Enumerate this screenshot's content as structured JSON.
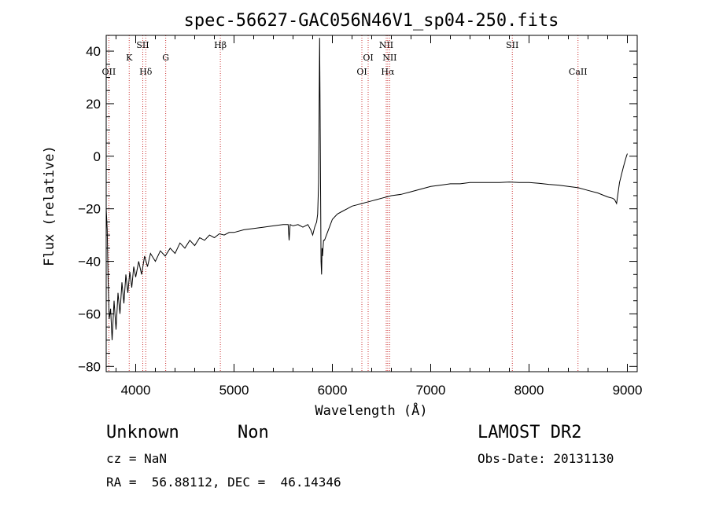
{
  "chart_data": {
    "type": "line",
    "title": "spec-56627-GAC056N46V1_sp04-250.fits",
    "xlabel": "Wavelength (Å)",
    "ylabel": "Flux (relative)",
    "xlim": [
      3700,
      9100
    ],
    "ylim": [
      -82,
      46
    ],
    "x_ticks": [
      4000,
      5000,
      6000,
      7000,
      8000,
      9000
    ],
    "y_ticks": [
      -80,
      -60,
      -40,
      -20,
      0,
      20,
      40
    ],
    "grid": false,
    "line_color": "#000000",
    "marker_color": "#cc3333",
    "emission_lines": [
      {
        "label": "OII",
        "wavelength": 3727,
        "level": 3
      },
      {
        "label": "K",
        "wavelength": 3934,
        "level": 2
      },
      {
        "label": "SII",
        "wavelength": 4072,
        "level": 1
      },
      {
        "label": "Hδ",
        "wavelength": 4102,
        "level": 3
      },
      {
        "label": "G",
        "wavelength": 4305,
        "level": 2
      },
      {
        "label": "Hβ",
        "wavelength": 4861,
        "level": 1
      },
      {
        "label": "OI",
        "wavelength": 6300,
        "level": 3
      },
      {
        "label": "OI",
        "wavelength": 6364,
        "level": 2
      },
      {
        "label": "NII",
        "wavelength": 6548,
        "level": 1
      },
      {
        "label": "Hα",
        "wavelength": 6563,
        "level": 3
      },
      {
        "label": "NII",
        "wavelength": 6583,
        "level": 2
      },
      {
        "label": "SII",
        "wavelength": 7830,
        "level": 1
      },
      {
        "label": "CaII",
        "wavelength": 8498,
        "level": 3
      }
    ],
    "series": [
      {
        "x": [
          3700,
          3710,
          3720,
          3730,
          3745,
          3760,
          3780,
          3800,
          3820,
          3840,
          3860,
          3880,
          3900,
          3920,
          3940,
          3960,
          3980,
          4000,
          4030,
          4060,
          4090,
          4120,
          4150,
          4200,
          4250,
          4300,
          4350,
          4400,
          4450,
          4500,
          4550,
          4600,
          4650,
          4700,
          4750,
          4800,
          4850,
          4900,
          4950,
          5000,
          5100,
          5200,
          5300,
          5400,
          5500,
          5550,
          5560,
          5570,
          5600,
          5650,
          5700,
          5750,
          5780,
          5800,
          5820,
          5840,
          5850,
          5860,
          5870,
          5875,
          5880,
          5885,
          5890,
          5895,
          5900,
          5910,
          5920,
          5940,
          5960,
          6000,
          6050,
          6100,
          6150,
          6200,
          6250,
          6300,
          6350,
          6400,
          6450,
          6500,
          6550,
          6600,
          6700,
          6800,
          6900,
          7000,
          7100,
          7200,
          7300,
          7400,
          7500,
          7600,
          7700,
          7800,
          7900,
          8000,
          8100,
          8200,
          8300,
          8400,
          8500,
          8600,
          8700,
          8800,
          8850,
          8870,
          8890,
          8920,
          8960,
          8990,
          9000
        ],
        "y": [
          -20,
          -28,
          -48,
          -62,
          -58,
          -70,
          -55,
          -66,
          -52,
          -60,
          -48,
          -56,
          -45,
          -52,
          -44,
          -50,
          -42,
          -46,
          -40,
          -45,
          -38,
          -42,
          -37,
          -40,
          -36,
          -38,
          -35,
          -37,
          -33,
          -35,
          -32,
          -34,
          -31,
          -32,
          -30,
          -31,
          -29.5,
          -30,
          -29,
          -29,
          -28,
          -27.5,
          -27,
          -26.5,
          -26,
          -26,
          -32,
          -26,
          -26.5,
          -26,
          -27,
          -26,
          -28,
          -30,
          -27,
          -25,
          -22,
          -10,
          45,
          18,
          -12,
          -40,
          -45,
          -35,
          -38,
          -32,
          -32,
          -30,
          -28,
          -24,
          -22,
          -21,
          -20,
          -19,
          -18.5,
          -18,
          -17.5,
          -17,
          -16.5,
          -16,
          -15.5,
          -15,
          -14.5,
          -13.5,
          -12.5,
          -11.5,
          -11,
          -10.5,
          -10.5,
          -10,
          -10,
          -10,
          -10,
          -9.8,
          -10,
          -10,
          -10.3,
          -10.7,
          -11,
          -11.5,
          -12,
          -13,
          -14,
          -15.5,
          -16,
          -16.5,
          -18,
          -10,
          -4,
          0,
          1
        ]
      }
    ]
  },
  "info": {
    "class": "Unknown",
    "subclass": "Non",
    "survey": "LAMOST DR2",
    "cz": "cz = NaN",
    "obs_date": "Obs-Date: 20131130",
    "coords": "RA =  56.88112, DEC =  46.14346"
  }
}
